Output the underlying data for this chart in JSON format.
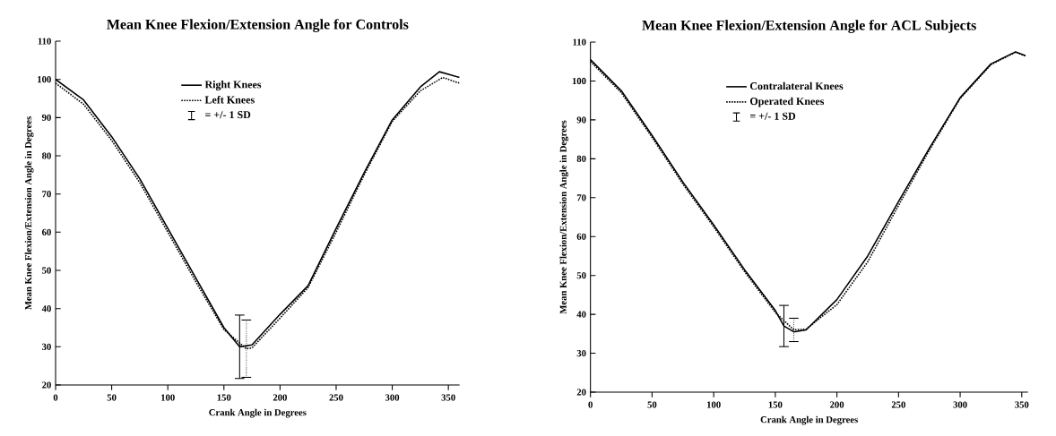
{
  "chart_data": [
    {
      "type": "line",
      "title": "Mean Knee Flexion/Extension Angle for Controls",
      "xlabel": "Crank Angle in Degrees",
      "ylabel": "Mean Knee Flexion/Extension Angle in Degrees",
      "xlim": [
        0,
        360
      ],
      "ylim": [
        20,
        110
      ],
      "xticks": [
        0,
        50,
        100,
        150,
        200,
        250,
        300,
        350
      ],
      "yticks": [
        20,
        30,
        40,
        50,
        60,
        70,
        80,
        90,
        100,
        110
      ],
      "legend": "top",
      "grid": false,
      "marker": "none",
      "annotations": [
        "= +/- 1 SD"
      ],
      "series": [
        {
          "name": "Right Knees",
          "color": "#000000",
          "line_style": "solid",
          "x": [
            0,
            25,
            50,
            75,
            100,
            125,
            150,
            164,
            175,
            200,
            225,
            250,
            275,
            300,
            325,
            342,
            360
          ],
          "values": [
            100,
            94.6,
            85,
            74,
            61,
            48,
            35,
            30,
            30.5,
            38.5,
            46,
            61,
            75.6,
            89.4,
            98,
            102,
            100.5
          ],
          "errors": [
            null,
            null,
            null,
            null,
            null,
            null,
            null,
            8.3,
            null,
            null,
            null,
            null,
            null,
            null,
            null,
            null,
            null
          ]
        },
        {
          "name": "Left Knees",
          "color": "#000000",
          "line_style": "dotted",
          "x": [
            0,
            25,
            50,
            75,
            100,
            125,
            150,
            170,
            175,
            200,
            225,
            250,
            275,
            300,
            325,
            345,
            360
          ],
          "values": [
            99,
            93.5,
            84,
            73,
            60,
            47,
            34.5,
            29.5,
            29.7,
            37.5,
            45.5,
            60,
            75,
            89,
            97,
            100.5,
            99
          ],
          "errors": [
            null,
            null,
            null,
            null,
            null,
            null,
            null,
            7.5,
            null,
            null,
            null,
            null,
            null,
            null,
            null,
            null,
            null
          ]
        }
      ]
    },
    {
      "type": "line",
      "title": "Mean Knee Flexion/Extension Angle for ACL Subjects",
      "xlabel": "Crank Angle in Degrees",
      "ylabel": "Mean Knee Flexion/Extension Angle in Degrees",
      "xlim": [
        0,
        355
      ],
      "ylim": [
        20,
        110
      ],
      "xticks": [
        0,
        50,
        100,
        150,
        200,
        250,
        300,
        350
      ],
      "yticks": [
        20,
        30,
        40,
        50,
        60,
        70,
        80,
        90,
        100,
        110
      ],
      "legend": "top",
      "grid": false,
      "marker": "none",
      "annotations": [
        "= +/- 1 SD"
      ],
      "series": [
        {
          "name": "Contralateral   Knees",
          "color": "#000000",
          "line_style": "solid",
          "x": [
            0,
            25,
            50,
            75,
            100,
            125,
            150,
            157,
            165,
            175,
            200,
            225,
            250,
            275,
            300,
            325,
            345,
            353
          ],
          "values": [
            105.5,
            97.5,
            86,
            74,
            63,
            51.5,
            41,
            37,
            35.5,
            36,
            43.8,
            55,
            69,
            82.7,
            95.7,
            104.4,
            107.5,
            106.5
          ],
          "errors": [
            null,
            null,
            null,
            null,
            null,
            null,
            null,
            5.3,
            null,
            null,
            null,
            null,
            null,
            null,
            null,
            null,
            null,
            null
          ]
        },
        {
          "name": "Operated Knees",
          "color": "#000000",
          "line_style": "dotted",
          "x": [
            0,
            25,
            50,
            75,
            100,
            125,
            150,
            165,
            175,
            200,
            225,
            250,
            275,
            300,
            325,
            345,
            353
          ],
          "values": [
            105,
            97,
            85.5,
            73.5,
            62.5,
            51,
            40.5,
            36,
            36.2,
            42.5,
            53.5,
            68,
            82.2,
            95.5,
            104.2,
            107.4,
            106.5
          ],
          "errors": [
            null,
            null,
            null,
            null,
            null,
            null,
            null,
            3,
            null,
            null,
            null,
            null,
            null,
            null,
            null,
            null,
            null
          ]
        }
      ]
    }
  ]
}
